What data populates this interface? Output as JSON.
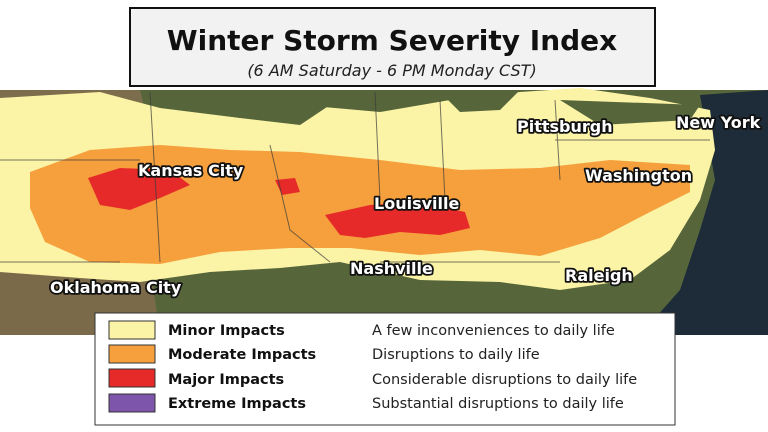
{
  "header": {
    "title": "Winter Storm Severity Index",
    "subtitle": "(6 AM Saturday - 6 PM Monday CST)"
  },
  "cities": [
    "Kansas City",
    "Louisville",
    "Nashville",
    "Oklahoma City",
    "Pittsburgh",
    "New York",
    "Washington",
    "Raleigh"
  ],
  "legend": {
    "items": [
      {
        "label": "Minor Impacts",
        "description": "A few inconveniences to daily life",
        "color": "#fbf3a6"
      },
      {
        "label": "Moderate Impacts",
        "description": "Disruptions to daily life",
        "color": "#f5a03c"
      },
      {
        "label": "Major Impacts",
        "description": "Considerable disruptions to daily life",
        "color": "#e62a2a"
      },
      {
        "label": "Extreme Impacts",
        "description": "Substantial disruptions to daily life",
        "color": "#7d55aa"
      }
    ]
  }
}
